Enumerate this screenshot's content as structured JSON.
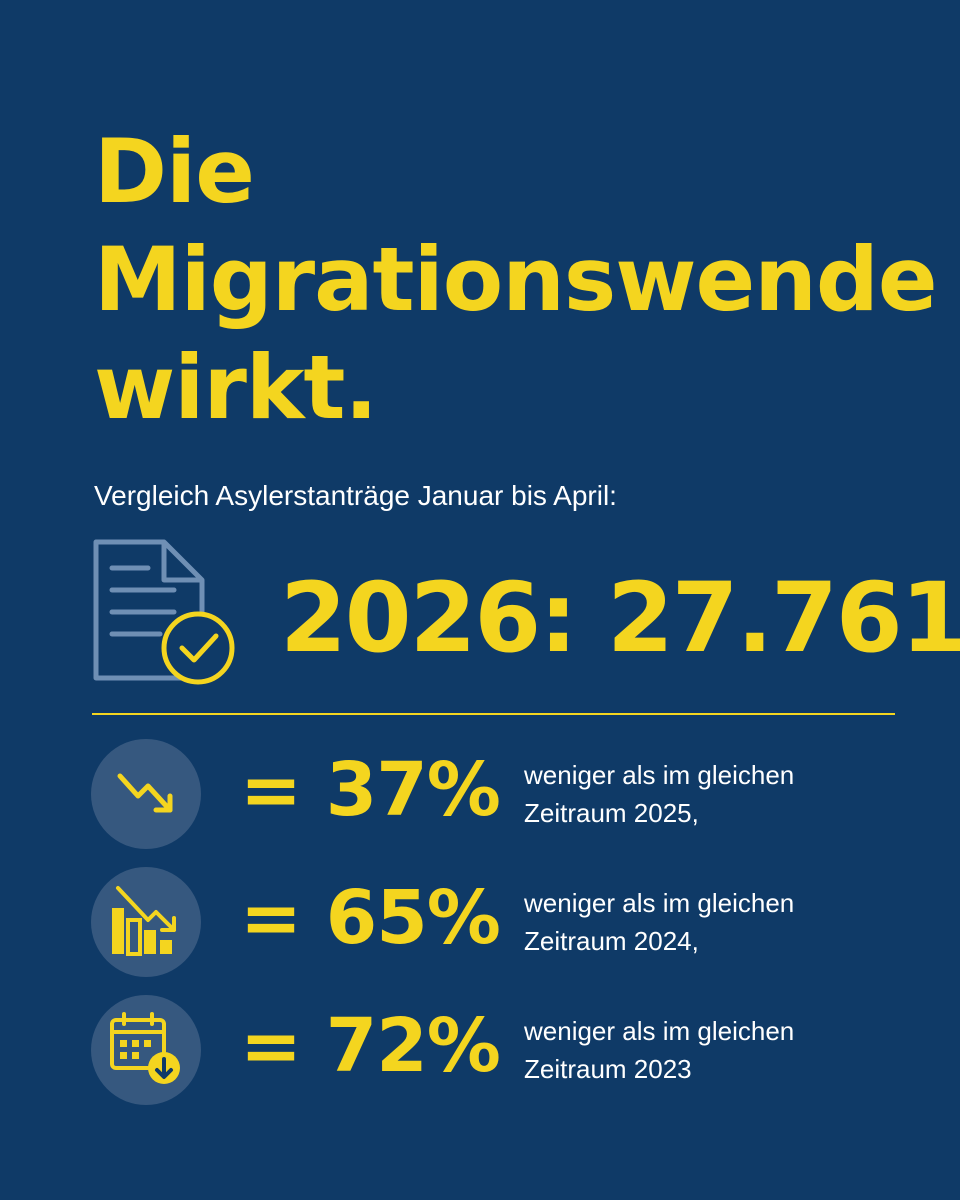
{
  "colors": {
    "background": "#0f3a67",
    "accent_yellow": "#f4d51f",
    "text_white": "#ffffff",
    "icon_circle": "#36587f",
    "doc_outline": "#6f8fb4"
  },
  "headline": {
    "line1": "Die",
    "line2": "Migrationswende",
    "line3": "wirkt."
  },
  "subtitle": "Vergleich Asylerstanträge Januar bis April:",
  "main_stat": {
    "icon": "document-check-icon",
    "text": "2026: 27.761"
  },
  "comparisons": [
    {
      "icon": "trend-down-icon",
      "value": "= 37%",
      "line1": "weniger als im gleichen",
      "line2": "Zeitraum 2025,"
    },
    {
      "icon": "bar-chart-down-icon",
      "value": "= 65%",
      "line1": "weniger als im gleichen",
      "line2": "Zeitraum 2024,"
    },
    {
      "icon": "calendar-download-icon",
      "value": "= 72%",
      "line1": "weniger als im gleichen",
      "line2": "Zeitraum 2023"
    }
  ]
}
